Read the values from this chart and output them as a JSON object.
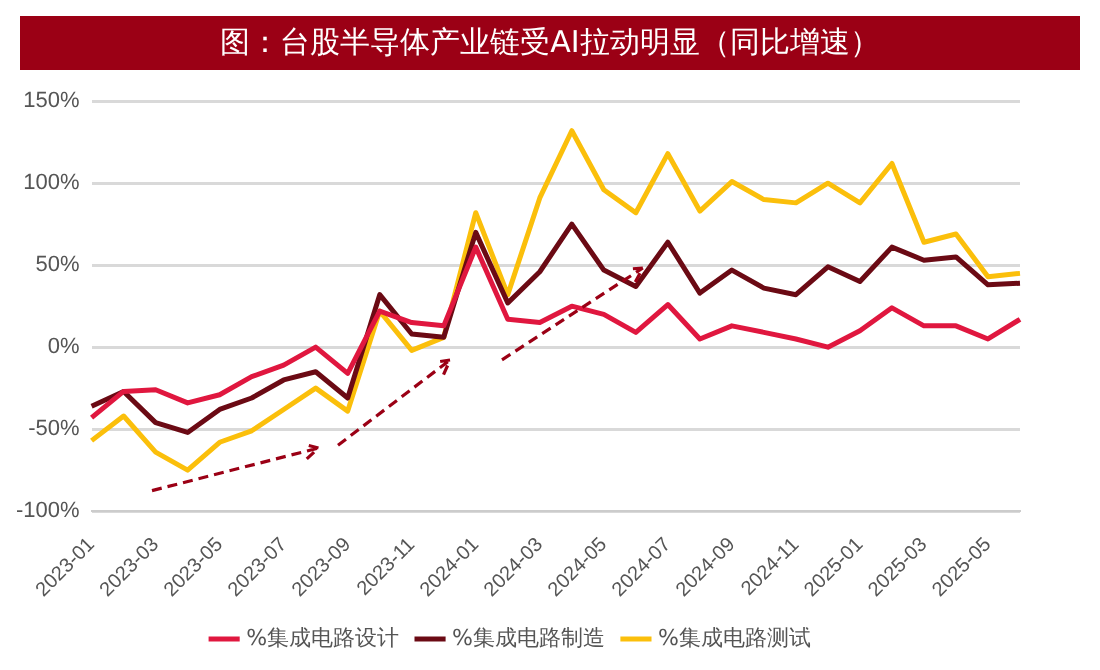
{
  "chart_data": {
    "type": "line",
    "title": "图：台股半导体产业链受AI拉动明显（同比增速）",
    "categories": [
      "2023-01",
      null,
      "2023-03",
      null,
      "2023-05",
      null,
      "2023-07",
      null,
      "2023-09",
      null,
      "2023-11",
      null,
      "2024-01",
      null,
      "2024-03",
      null,
      "2024-05",
      null,
      "2024-07",
      null,
      "2024-09",
      null,
      "2024-11",
      null,
      "2025-01",
      null,
      "2025-03",
      null,
      "2025-05",
      null
    ],
    "series": [
      {
        "name": "%集成电路设计",
        "color": "#e0173f",
        "values": [
          -43,
          -27,
          -26,
          -34,
          -29,
          -18,
          -11,
          0,
          -16,
          22,
          15,
          13,
          61,
          17,
          15,
          25,
          20,
          9,
          26,
          5,
          13,
          9,
          5,
          0,
          10,
          24,
          13,
          13,
          5,
          17
        ]
      },
      {
        "name": "%集成电路制造",
        "color": "#6b0a14",
        "values": [
          -36,
          -27,
          -46,
          -52,
          -38,
          -31,
          -20,
          -15,
          -31,
          32,
          8,
          6,
          70,
          27,
          46,
          75,
          47,
          37,
          64,
          33,
          47,
          36,
          32,
          49,
          40,
          61,
          53,
          55,
          38,
          39
        ]
      },
      {
        "name": "%集成电路测试",
        "color": "#fbbf0b",
        "values": [
          -57,
          -42,
          -64,
          -75,
          -58,
          -51,
          -38,
          -25,
          -39,
          22,
          -2,
          6,
          82,
          32,
          91,
          132,
          96,
          82,
          118,
          83,
          101,
          90,
          88,
          100,
          88,
          112,
          64,
          69,
          43,
          45
        ]
      }
    ],
    "ylim": [
      -100,
      150
    ],
    "yticks": [
      {
        "value": -100,
        "label": "-100%"
      },
      {
        "value": -50,
        "label": "-50%"
      },
      {
        "value": 0,
        "label": "0%"
      },
      {
        "value": 50,
        "label": "50%"
      },
      {
        "value": 100,
        "label": "100%"
      },
      {
        "value": 150,
        "label": "150%"
      }
    ],
    "grid": "y",
    "legend": "bottom",
    "marker": "none",
    "line_style": "solid"
  }
}
